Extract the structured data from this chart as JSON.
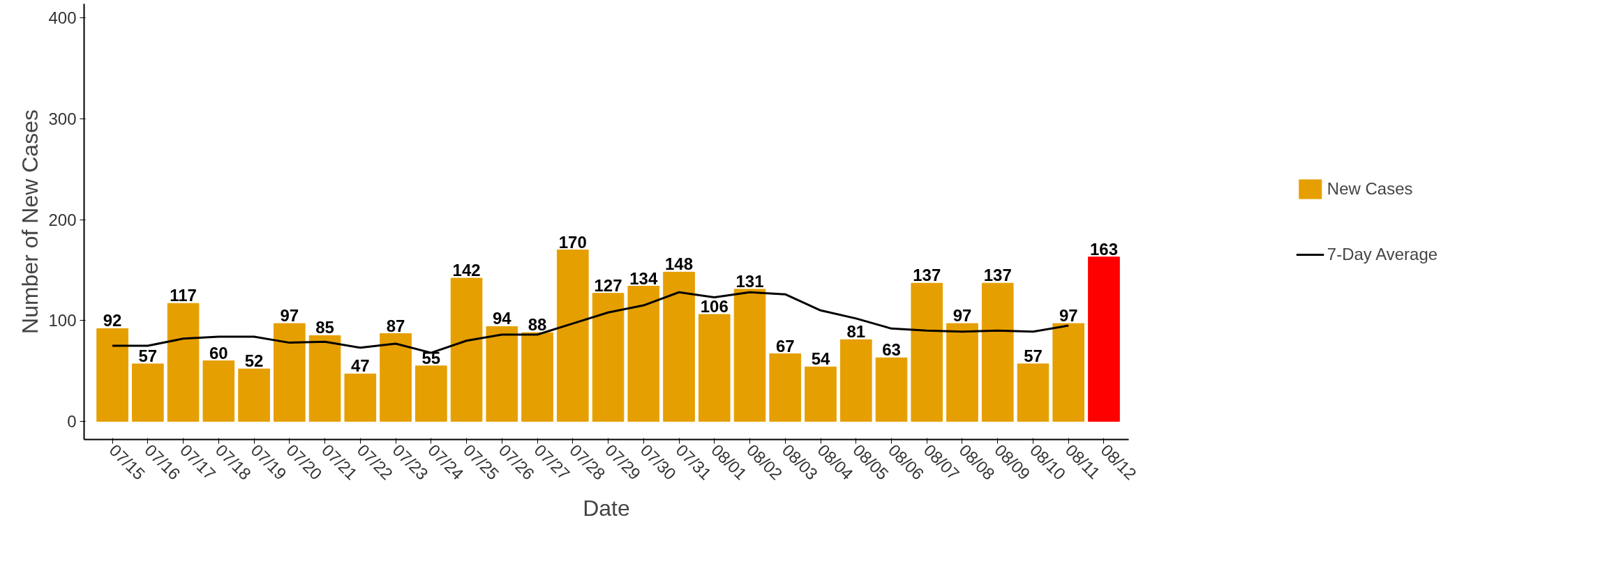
{
  "chart_data": {
    "type": "bar",
    "xlabel": "Date",
    "ylabel": "Number of New Cases",
    "categories": [
      "07/15",
      "07/16",
      "07/17",
      "07/18",
      "07/19",
      "07/20",
      "07/21",
      "07/22",
      "07/23",
      "07/24",
      "07/25",
      "07/26",
      "07/27",
      "07/28",
      "07/29",
      "07/30",
      "07/31",
      "08/01",
      "08/02",
      "08/03",
      "08/04",
      "08/05",
      "08/06",
      "08/07",
      "08/08",
      "08/09",
      "08/10",
      "08/11",
      "08/12"
    ],
    "series": [
      {
        "name": "New Cases",
        "color": "#e69f00",
        "values": [
          92,
          57,
          117,
          60,
          52,
          97,
          85,
          47,
          87,
          55,
          142,
          94,
          88,
          170,
          127,
          134,
          148,
          106,
          131,
          67,
          54,
          81,
          63,
          137,
          97,
          137,
          57,
          97,
          null
        ],
        "value_labels": [
          "92",
          "57",
          "117",
          "60",
          "52",
          "97",
          "85",
          "47",
          "87",
          "55",
          "142",
          "94",
          "88",
          "170",
          "127",
          "134",
          "148",
          "106",
          "131",
          "67",
          "54",
          "81",
          "63",
          "137",
          "97",
          "137",
          "57",
          "97",
          null
        ]
      },
      {
        "color": "#ff0000",
        "values": [
          null,
          null,
          null,
          null,
          null,
          null,
          null,
          null,
          null,
          null,
          null,
          null,
          null,
          null,
          null,
          null,
          null,
          null,
          null,
          null,
          null,
          null,
          null,
          null,
          null,
          null,
          null,
          null,
          163
        ],
        "value_labels": [
          null,
          null,
          null,
          null,
          null,
          null,
          null,
          null,
          null,
          null,
          null,
          null,
          null,
          null,
          null,
          null,
          null,
          null,
          null,
          null,
          null,
          null,
          null,
          null,
          null,
          null,
          null,
          null,
          "163"
        ]
      },
      {
        "name": "7-Day Average",
        "type": "line",
        "color": "#000000",
        "values": [
          75,
          75,
          82,
          84,
          84,
          78,
          79,
          73,
          77,
          68,
          80,
          86,
          86,
          97,
          108,
          115,
          128,
          123,
          128,
          126,
          110,
          102,
          92,
          90,
          89,
          90,
          89,
          95,
          null
        ]
      }
    ],
    "ylim": [
      -18,
      414
    ],
    "yticks": [
      0,
      100,
      200,
      300,
      400
    ],
    "grid": false,
    "legend": "right",
    "line_style": "solid",
    "marker": "none"
  }
}
